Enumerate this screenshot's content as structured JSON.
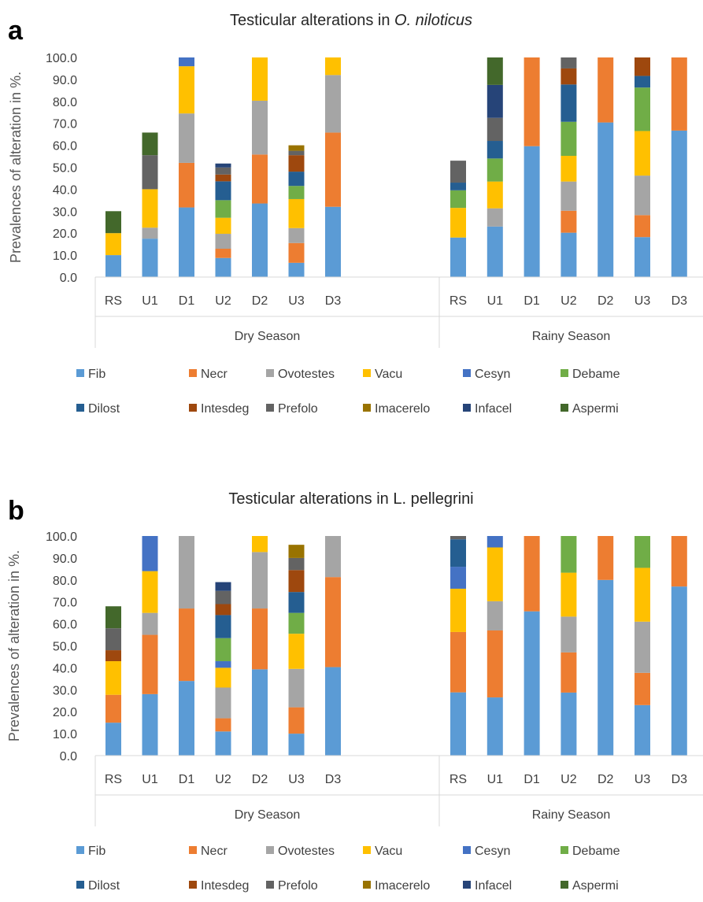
{
  "legend_order": [
    "Fib",
    "Necr",
    "Ovotestes",
    "Vacu",
    "Cesyn",
    "Debame",
    "Dilost",
    "Intesdeg",
    "Prefolo",
    "Imacerelo",
    "Infacel",
    "Aspermi"
  ],
  "colors": {
    "Fib": "#5B9BD5",
    "Necr": "#ED7D31",
    "Ovotestes": "#A5A5A5",
    "Vacu": "#FFC000",
    "Cesyn": "#4472C4",
    "Debame": "#70AD47",
    "Dilost": "#255E91",
    "Intesdeg": "#9E480E",
    "Prefolo": "#636363",
    "Imacerelo": "#997300",
    "Infacel": "#264478",
    "Aspermi": "#43682B"
  },
  "chart_data": [
    {
      "type": "bar",
      "stacked": true,
      "panel_label": "a",
      "title_prefix": "Testicular alterations in ",
      "title_italic": "O. niloticus",
      "ylabel": "Prevalences of alteration in %.",
      "ylim": [
        0,
        100
      ],
      "yticks": [
        "0.0",
        "10.0",
        "20.0",
        "30.0",
        "40.0",
        "50.0",
        "60.0",
        "70.0",
        "80.0",
        "90.0",
        "100.0"
      ],
      "grid": false,
      "legend_position": "bottom",
      "seasons": [
        {
          "name": "Dry  Season",
          "categories": [
            "RS",
            "U1",
            "D1",
            "U2",
            "D2",
            "U3",
            "D3"
          ],
          "series": {
            "Fib": [
              10,
              17.5,
              31.7,
              8.7,
              33.5,
              6.5,
              32
            ],
            "Necr": [
              0,
              0,
              20.3,
              4.2,
              22.3,
              9,
              33.8
            ],
            "Ovotestes": [
              0,
              5,
              22.5,
              6.8,
              24.5,
              6.8,
              26.2
            ],
            "Vacu": [
              10,
              17.5,
              21.5,
              7.3,
              19.7,
              13.2,
              8
            ],
            "Cesyn": [
              0,
              0,
              4,
              0,
              0,
              0,
              0
            ],
            "Debame": [
              0,
              0,
              0,
              8,
              0,
              6,
              0
            ],
            "Dilost": [
              0,
              0,
              0,
              8.6,
              0,
              6.5,
              0
            ],
            "Intesdeg": [
              0,
              0,
              0,
              3.1,
              0,
              7.5,
              0
            ],
            "Prefolo": [
              0,
              15.5,
              0,
              3.2,
              0,
              2,
              0
            ],
            "Imacerelo": [
              0,
              0,
              0,
              0,
              0,
              2.5,
              0
            ],
            "Infacel": [
              0,
              0,
              0,
              1.8,
              0,
              0,
              0
            ],
            "Aspermi": [
              10,
              10.3,
              0,
              0,
              0,
              0,
              0
            ]
          }
        },
        {
          "name": "Rainy Season",
          "categories": [
            "RS",
            "U1",
            "D1",
            "U2",
            "D2",
            "U3",
            "D3"
          ],
          "series": {
            "Fib": [
              18,
              23,
              59.6,
              20.2,
              70.4,
              18.2,
              66.7
            ],
            "Necr": [
              0,
              0,
              40.4,
              10,
              29.6,
              10,
              33.3
            ],
            "Ovotestes": [
              0,
              8.3,
              0,
              13.3,
              0,
              18,
              0
            ],
            "Vacu": [
              13.5,
              12.2,
              0,
              11.7,
              0,
              20.3,
              0
            ],
            "Cesyn": [
              0,
              0,
              0,
              0,
              0,
              0,
              0
            ],
            "Debame": [
              8,
              10.5,
              0,
              15.5,
              0,
              19.8,
              0
            ],
            "Dilost": [
              3.5,
              8,
              0,
              17,
              0,
              5.3,
              0
            ],
            "Intesdeg": [
              0,
              0,
              0,
              7.3,
              0,
              8.4,
              0
            ],
            "Prefolo": [
              10,
              10.5,
              0,
              5,
              0,
              0,
              0
            ],
            "Imacerelo": [
              0,
              0,
              0,
              0,
              0,
              0,
              0
            ],
            "Infacel": [
              0,
              15,
              0,
              0,
              0,
              0,
              0
            ],
            "Aspermi": [
              0,
              12.5,
              0,
              0,
              0,
              0,
              0
            ]
          }
        }
      ]
    },
    {
      "type": "bar",
      "stacked": true,
      "panel_label": "b",
      "title_prefix": "Testicular alterations in L. pellegrini",
      "title_italic": "",
      "ylabel": "Prevalences of alteration in %.",
      "ylim": [
        0,
        100
      ],
      "yticks": [
        "0.0",
        "10.0",
        "20.0",
        "30.0",
        "40.0",
        "50.0",
        "60.0",
        "70.0",
        "80.0",
        "90.0",
        "100.0"
      ],
      "grid": false,
      "legend_position": "bottom",
      "seasons": [
        {
          "name": "Dry  Season",
          "categories": [
            "RS",
            "U1",
            "D1",
            "U2",
            "D2",
            "U3",
            "D3"
          ],
          "series": {
            "Fib": [
              15,
              28,
              34,
              11,
              39.3,
              10,
              40.3
            ],
            "Necr": [
              12.7,
              27,
              33,
              6,
              27.7,
              12,
              41
            ],
            "Ovotestes": [
              0,
              10,
              33,
              14,
              25.7,
              17.5,
              18.7
            ],
            "Vacu": [
              15.3,
              19,
              0,
              9,
              7.3,
              16,
              0
            ],
            "Cesyn": [
              0,
              16,
              0,
              3,
              0,
              0,
              0
            ],
            "Debame": [
              0,
              0,
              0,
              10.5,
              0,
              9.5,
              0
            ],
            "Dilost": [
              0,
              0,
              0,
              10.5,
              0,
              9.5,
              0
            ],
            "Intesdeg": [
              5,
              0,
              0,
              5,
              0,
              10,
              0
            ],
            "Prefolo": [
              10,
              0,
              0,
              6,
              0,
              5.5,
              0
            ],
            "Imacerelo": [
              0,
              0,
              0,
              0,
              0,
              6,
              0
            ],
            "Infacel": [
              0,
              0,
              0,
              4,
              0,
              0,
              0
            ],
            "Aspermi": [
              10,
              0,
              0,
              0,
              0,
              0,
              0
            ]
          }
        },
        {
          "name": "Rainy Season",
          "categories": [
            "RS",
            "U1",
            "D1",
            "U2",
            "D2",
            "U3",
            "D3"
          ],
          "series": {
            "Fib": [
              28.8,
              26.5,
              65.7,
              28.7,
              80,
              23,
              77
            ],
            "Necr": [
              27.5,
              30.5,
              34.3,
              18.3,
              20,
              14.7,
              23
            ],
            "Ovotestes": [
              0,
              13.3,
              0,
              16.3,
              0,
              23.3,
              0
            ],
            "Vacu": [
              19.7,
              24.5,
              0,
              20,
              0,
              24.5,
              0
            ],
            "Cesyn": [
              10,
              5.2,
              0,
              0,
              0,
              0,
              0
            ],
            "Debame": [
              0,
              0,
              0,
              16.7,
              0,
              14.5,
              0
            ],
            "Dilost": [
              12.5,
              0,
              0,
              0,
              0,
              0,
              0
            ],
            "Intesdeg": [
              0,
              0,
              0,
              0,
              0,
              0,
              0
            ],
            "Prefolo": [
              1.5,
              0,
              0,
              0,
              0,
              0,
              0
            ],
            "Imacerelo": [
              0,
              0,
              0,
              0,
              0,
              0,
              0
            ],
            "Infacel": [
              0,
              0,
              0,
              0,
              0,
              0,
              0
            ],
            "Aspermi": [
              0,
              0,
              0,
              0,
              0,
              0,
              0
            ]
          }
        }
      ]
    }
  ]
}
